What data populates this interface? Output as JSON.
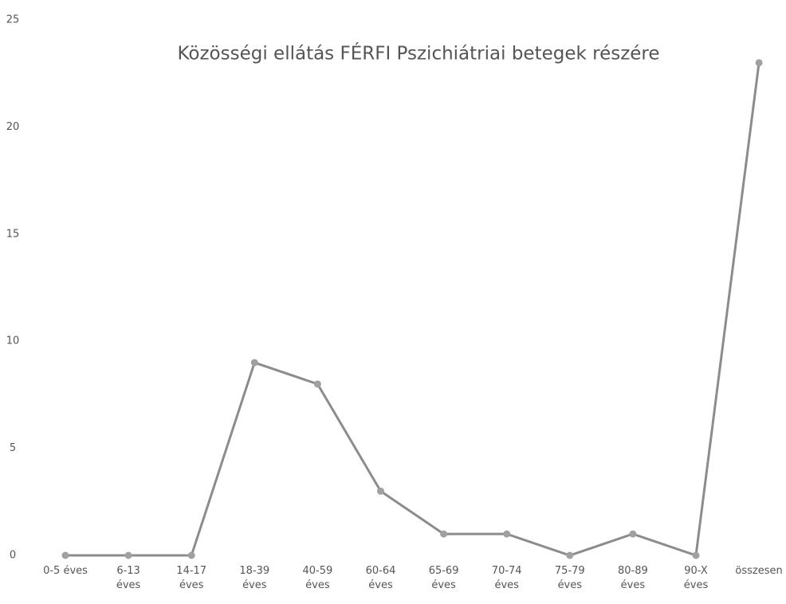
{
  "chart_data": {
    "type": "line",
    "title": "Közösségi ellátás FÉRFI Pszichiátriai betegek részére",
    "categories": [
      "0-5 éves",
      "6-13 éves",
      "14-17 éves",
      "18-39 éves",
      "40-59 éves",
      "60-64 éves",
      "65-69 éves",
      "70-74 éves",
      "75-79 éves",
      "80-89 éves",
      "90-X éves",
      "összesen"
    ],
    "values": [
      0,
      0,
      0,
      9,
      8,
      3,
      1,
      1,
      0,
      1,
      0,
      23
    ],
    "color": "#8c8c8c",
    "ylim": [
      0,
      25
    ],
    "yticks": [
      0,
      5,
      10,
      15,
      20,
      25
    ],
    "grid": false
  }
}
